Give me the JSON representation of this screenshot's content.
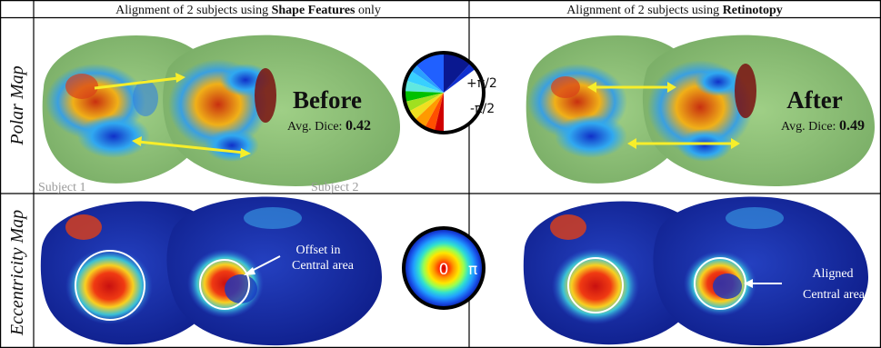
{
  "headers": {
    "left_prefix": "Alignment of 2 subjects using ",
    "left_bold": "Shape Features",
    "left_suffix": " only",
    "right_prefix": "Alignment of 2 subjects using ",
    "right_bold": "Retinotopy"
  },
  "row_labels": {
    "polar": "Polar Map",
    "eccentricity": "Eccentricity Map"
  },
  "polar_row": {
    "before_title": "Before",
    "before_dice_label": "Avg. Dice: ",
    "before_dice_value": "0.42",
    "after_title": "After",
    "after_dice_label": "Avg. Dice: ",
    "after_dice_value": "0.49",
    "subject1_label": "Subject 1",
    "subject2_label": "Subject 2"
  },
  "polar_legend": {
    "plus_label": "+π/2",
    "minus_label": "-π/2"
  },
  "eccentricity_row": {
    "offset_label_line1": "Offset in",
    "offset_label_line2": "Central area",
    "aligned_label_line1": "Aligned",
    "aligned_label_line2": "Central area"
  },
  "ecc_legend": {
    "center_label": "0",
    "edge_label": "π"
  },
  "colors": {
    "cortex_green": "#8cc07a",
    "cortex_navy": "#1a2fa8",
    "arrow_yellow": "#f7ee2a",
    "grid_line": "#000000"
  }
}
